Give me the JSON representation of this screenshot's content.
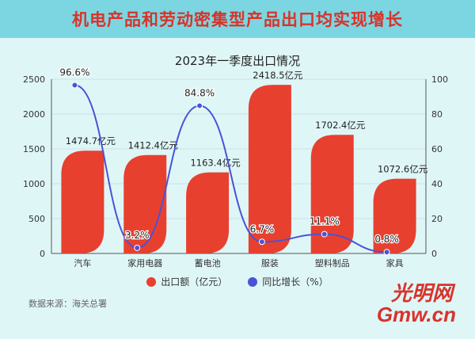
{
  "header": {
    "title": "机电产品和劳动密集型产品出口均实现增长"
  },
  "chart_data": {
    "type": "bar",
    "title": "2023年一季度出口情况",
    "categories": [
      "汽车",
      "家用电器",
      "蓄电池",
      "服装",
      "塑料制品",
      "家具"
    ],
    "series": [
      {
        "name": "出口额（亿元）",
        "type": "bar",
        "axis": "left",
        "values": [
          1474.7,
          1412.4,
          1163.4,
          2418.5,
          1702.4,
          1072.6
        ],
        "labels": [
          "1474.7亿元",
          "1412.4亿元",
          "1163.4亿元",
          "2418.5亿元",
          "1702.4亿元",
          "1072.6亿元"
        ],
        "color": "#e8402f"
      },
      {
        "name": "同比增长（%）",
        "type": "line",
        "axis": "right",
        "values": [
          96.6,
          3.2,
          84.8,
          6.7,
          11.1,
          0.8
        ],
        "labels": [
          "96.6%",
          "3.2%",
          "84.8%",
          "6.7%",
          "11.1%",
          "0.8%"
        ],
        "color": "#4a53d6"
      }
    ],
    "y_left": {
      "min": 0,
      "max": 2500,
      "ticks": [
        0,
        500,
        1000,
        1500,
        2000,
        2500
      ]
    },
    "y_right": {
      "min": 0,
      "max": 100,
      "ticks": [
        0,
        20,
        40,
        60,
        80,
        100
      ]
    },
    "legend": "bottom",
    "grid": true
  },
  "footer": {
    "source": "数据来源：海关总署",
    "watermark_top": "光明网",
    "watermark_bottom": "Gmw.cn"
  },
  "colors": {
    "banner": "#7cd6e1",
    "title": "#d9322a",
    "bar": "#e8402f",
    "line": "#4a53d6"
  }
}
